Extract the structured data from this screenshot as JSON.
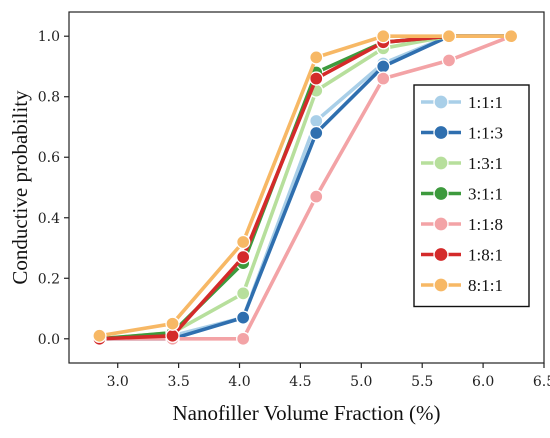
{
  "chart_data": {
    "type": "line",
    "title": "",
    "xlabel": "Nanofiller Volume Fraction (%)",
    "ylabel": "Conductive probability",
    "xlim": [
      2.6,
      6.5
    ],
    "ylim": [
      -0.08,
      1.08
    ],
    "x_ticks": [
      "3.0",
      "3.5",
      "4.0",
      "4.5",
      "5.0",
      "5.5",
      "6.0",
      "6.5"
    ],
    "x_tick_values": [
      3.0,
      3.5,
      4.0,
      4.5,
      5.0,
      5.5,
      6.0,
      6.5
    ],
    "y_ticks": [
      "0.0",
      "0.2",
      "0.4",
      "0.6",
      "0.8",
      "1.0"
    ],
    "y_tick_values": [
      0.0,
      0.2,
      0.4,
      0.6,
      0.8,
      1.0
    ],
    "grid": false,
    "legend_position": "right",
    "series": [
      {
        "name": "1:1:1",
        "color": "#a9cfe8",
        "x": [
          2.85,
          3.45,
          4.03,
          4.63,
          5.18,
          5.72,
          6.23
        ],
        "y": [
          0.0,
          0.01,
          0.07,
          0.72,
          0.91,
          1.0,
          1.0
        ]
      },
      {
        "name": "1:1:3",
        "color": "#2f6faf",
        "x": [
          2.85,
          3.45,
          4.03,
          4.63,
          5.18,
          5.72,
          6.23
        ],
        "y": [
          0.0,
          0.0,
          0.07,
          0.68,
          0.9,
          1.0,
          1.0
        ]
      },
      {
        "name": "1:3:1",
        "color": "#b7df9c",
        "x": [
          2.85,
          3.45,
          4.03,
          4.63,
          5.18,
          5.72,
          6.23
        ],
        "y": [
          0.0,
          0.02,
          0.15,
          0.82,
          0.96,
          1.0,
          1.0
        ]
      },
      {
        "name": "3:1:1",
        "color": "#3d9a3d",
        "x": [
          2.85,
          3.45,
          4.03,
          4.63,
          5.18,
          5.72,
          6.23
        ],
        "y": [
          0.0,
          0.02,
          0.25,
          0.88,
          0.98,
          1.0,
          1.0
        ]
      },
      {
        "name": "1:1:8",
        "color": "#f3a3a6",
        "x": [
          2.85,
          3.45,
          4.03,
          4.63,
          5.18,
          5.72,
          6.23
        ],
        "y": [
          0.0,
          0.0,
          0.0,
          0.47,
          0.86,
          0.92,
          1.0
        ]
      },
      {
        "name": "1:8:1",
        "color": "#d42a2a",
        "x": [
          2.85,
          3.45,
          4.03,
          4.63,
          5.18,
          5.72,
          6.23
        ],
        "y": [
          0.0,
          0.01,
          0.27,
          0.86,
          0.98,
          1.0,
          1.0
        ]
      },
      {
        "name": "8:1:1",
        "color": "#f7b865",
        "x": [
          2.85,
          3.45,
          4.03,
          4.63,
          5.18,
          5.72,
          6.23
        ],
        "y": [
          0.01,
          0.05,
          0.32,
          0.93,
          1.0,
          1.0,
          1.0
        ]
      }
    ]
  }
}
